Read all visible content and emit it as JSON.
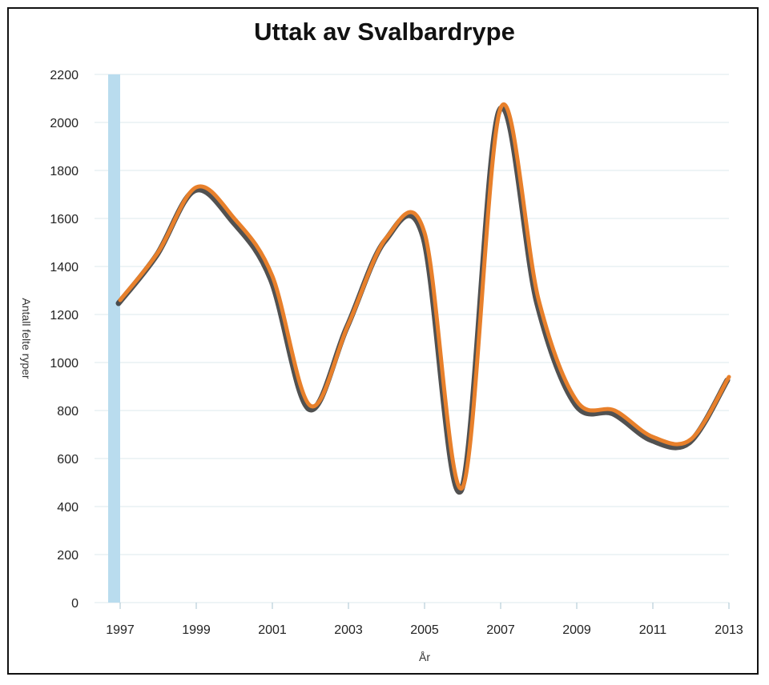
{
  "chart_data": {
    "type": "line",
    "title": "Uttak av Svalbardrype",
    "xlabel": "År",
    "ylabel": "Antall felte ryper",
    "x_ticks": [
      "1997",
      "1999",
      "2001",
      "2003",
      "2005",
      "2007",
      "2009",
      "2011",
      "2013"
    ],
    "y_ticks": [
      "0",
      "200",
      "400",
      "600",
      "800",
      "1000",
      "1200",
      "1400",
      "1600",
      "1800",
      "2000",
      "2200"
    ],
    "xlim": [
      1997,
      2013
    ],
    "ylim": [
      0,
      2200
    ],
    "grid": "horizontal",
    "line_color": "#e8802b",
    "shadow_color": "#333333",
    "band_color": "#b9dcee",
    "series": [
      {
        "x": [
          1997,
          1998,
          1999,
          2000,
          2001,
          2002,
          2003,
          2004,
          2005,
          2006,
          2007,
          2008,
          2009,
          2010,
          2011,
          2012,
          2013
        ],
        "values": [
          1260,
          1460,
          1730,
          1600,
          1360,
          820,
          1160,
          1520,
          1540,
          480,
          2060,
          1260,
          840,
          800,
          690,
          680,
          940
        ]
      }
    ]
  }
}
